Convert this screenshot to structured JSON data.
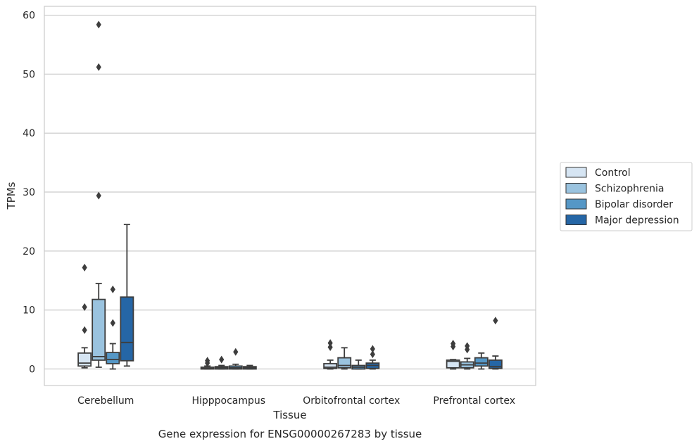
{
  "chart_data": {
    "type": "box",
    "title": "",
    "caption": "Gene expression for ENSG00000267283 by tissue",
    "xlabel": "Tissue",
    "ylabel": "TPMs",
    "ylim": [
      -2.8,
      61.5
    ],
    "yticks": [
      0,
      10,
      20,
      30,
      40,
      50,
      60
    ],
    "grid": "horizontal",
    "legend_position": "right",
    "categories": [
      "Cerebellum",
      "Hipppocampus",
      "Orbitofrontal cortex",
      "Prefrontal cortex"
    ],
    "series": [
      {
        "name": "Control",
        "color": "#d6e5f3",
        "boxes": [
          {
            "whislo": 0.2,
            "q1": 0.5,
            "med": 1.0,
            "q3": 2.7,
            "whishi": 3.6,
            "fliers": [
              6.6,
              10.5,
              17.2
            ]
          },
          {
            "whislo": 0.0,
            "q1": 0.0,
            "med": 0.1,
            "q3": 0.3,
            "whishi": 0.5,
            "fliers": [
              1.0,
              1.4
            ]
          },
          {
            "whislo": 0.0,
            "q1": 0.1,
            "med": 0.3,
            "q3": 0.9,
            "whishi": 1.5,
            "fliers": [
              3.7,
              4.4
            ]
          },
          {
            "whislo": 0.0,
            "q1": 0.2,
            "med": 1.3,
            "q3": 1.5,
            "whishi": 1.6,
            "fliers": [
              3.8,
              4.3
            ]
          }
        ]
      },
      {
        "name": "Schizophrenia",
        "color": "#9ac3df",
        "boxes": [
          {
            "whislo": 0.3,
            "q1": 1.5,
            "med": 2.1,
            "q3": 11.8,
            "whishi": 14.5,
            "fliers": [
              29.4,
              51.2,
              58.4
            ]
          },
          {
            "whislo": 0.0,
            "q1": 0.0,
            "med": 0.2,
            "q3": 0.4,
            "whishi": 0.6,
            "fliers": [
              1.6
            ]
          },
          {
            "whislo": 0.0,
            "q1": 0.2,
            "med": 0.6,
            "q3": 1.9,
            "whishi": 3.6,
            "fliers": []
          },
          {
            "whislo": 0.0,
            "q1": 0.2,
            "med": 0.7,
            "q3": 1.2,
            "whishi": 1.8,
            "fliers": [
              3.3,
              3.9
            ]
          }
        ]
      },
      {
        "name": "Bipolar disorder",
        "color": "#5597c6",
        "boxes": [
          {
            "whislo": 0.0,
            "q1": 0.9,
            "med": 1.6,
            "q3": 2.8,
            "whishi": 4.3,
            "fliers": [
              7.8,
              13.5
            ]
          },
          {
            "whislo": 0.0,
            "q1": 0.0,
            "med": 0.2,
            "q3": 0.5,
            "whishi": 0.8,
            "fliers": [
              2.9
            ]
          },
          {
            "whislo": 0.0,
            "q1": 0.0,
            "med": 0.3,
            "q3": 0.6,
            "whishi": 1.5,
            "fliers": []
          },
          {
            "whislo": 0.0,
            "q1": 0.5,
            "med": 1.0,
            "q3": 1.9,
            "whishi": 2.7,
            "fliers": []
          }
        ]
      },
      {
        "name": "Major depression",
        "color": "#2566a6",
        "boxes": [
          {
            "whislo": 0.5,
            "q1": 1.4,
            "med": 4.5,
            "q3": 12.2,
            "whishi": 24.5,
            "fliers": []
          },
          {
            "whislo": 0.0,
            "q1": 0.0,
            "med": 0.2,
            "q3": 0.4,
            "whishi": 0.6,
            "fliers": []
          },
          {
            "whislo": 0.0,
            "q1": 0.1,
            "med": 0.6,
            "q3": 1.0,
            "whishi": 1.5,
            "fliers": [
              2.5,
              3.4
            ]
          },
          {
            "whislo": 0.0,
            "q1": 0.1,
            "med": 0.4,
            "q3": 1.5,
            "whishi": 2.2,
            "fliers": [
              8.2
            ]
          }
        ]
      }
    ]
  }
}
